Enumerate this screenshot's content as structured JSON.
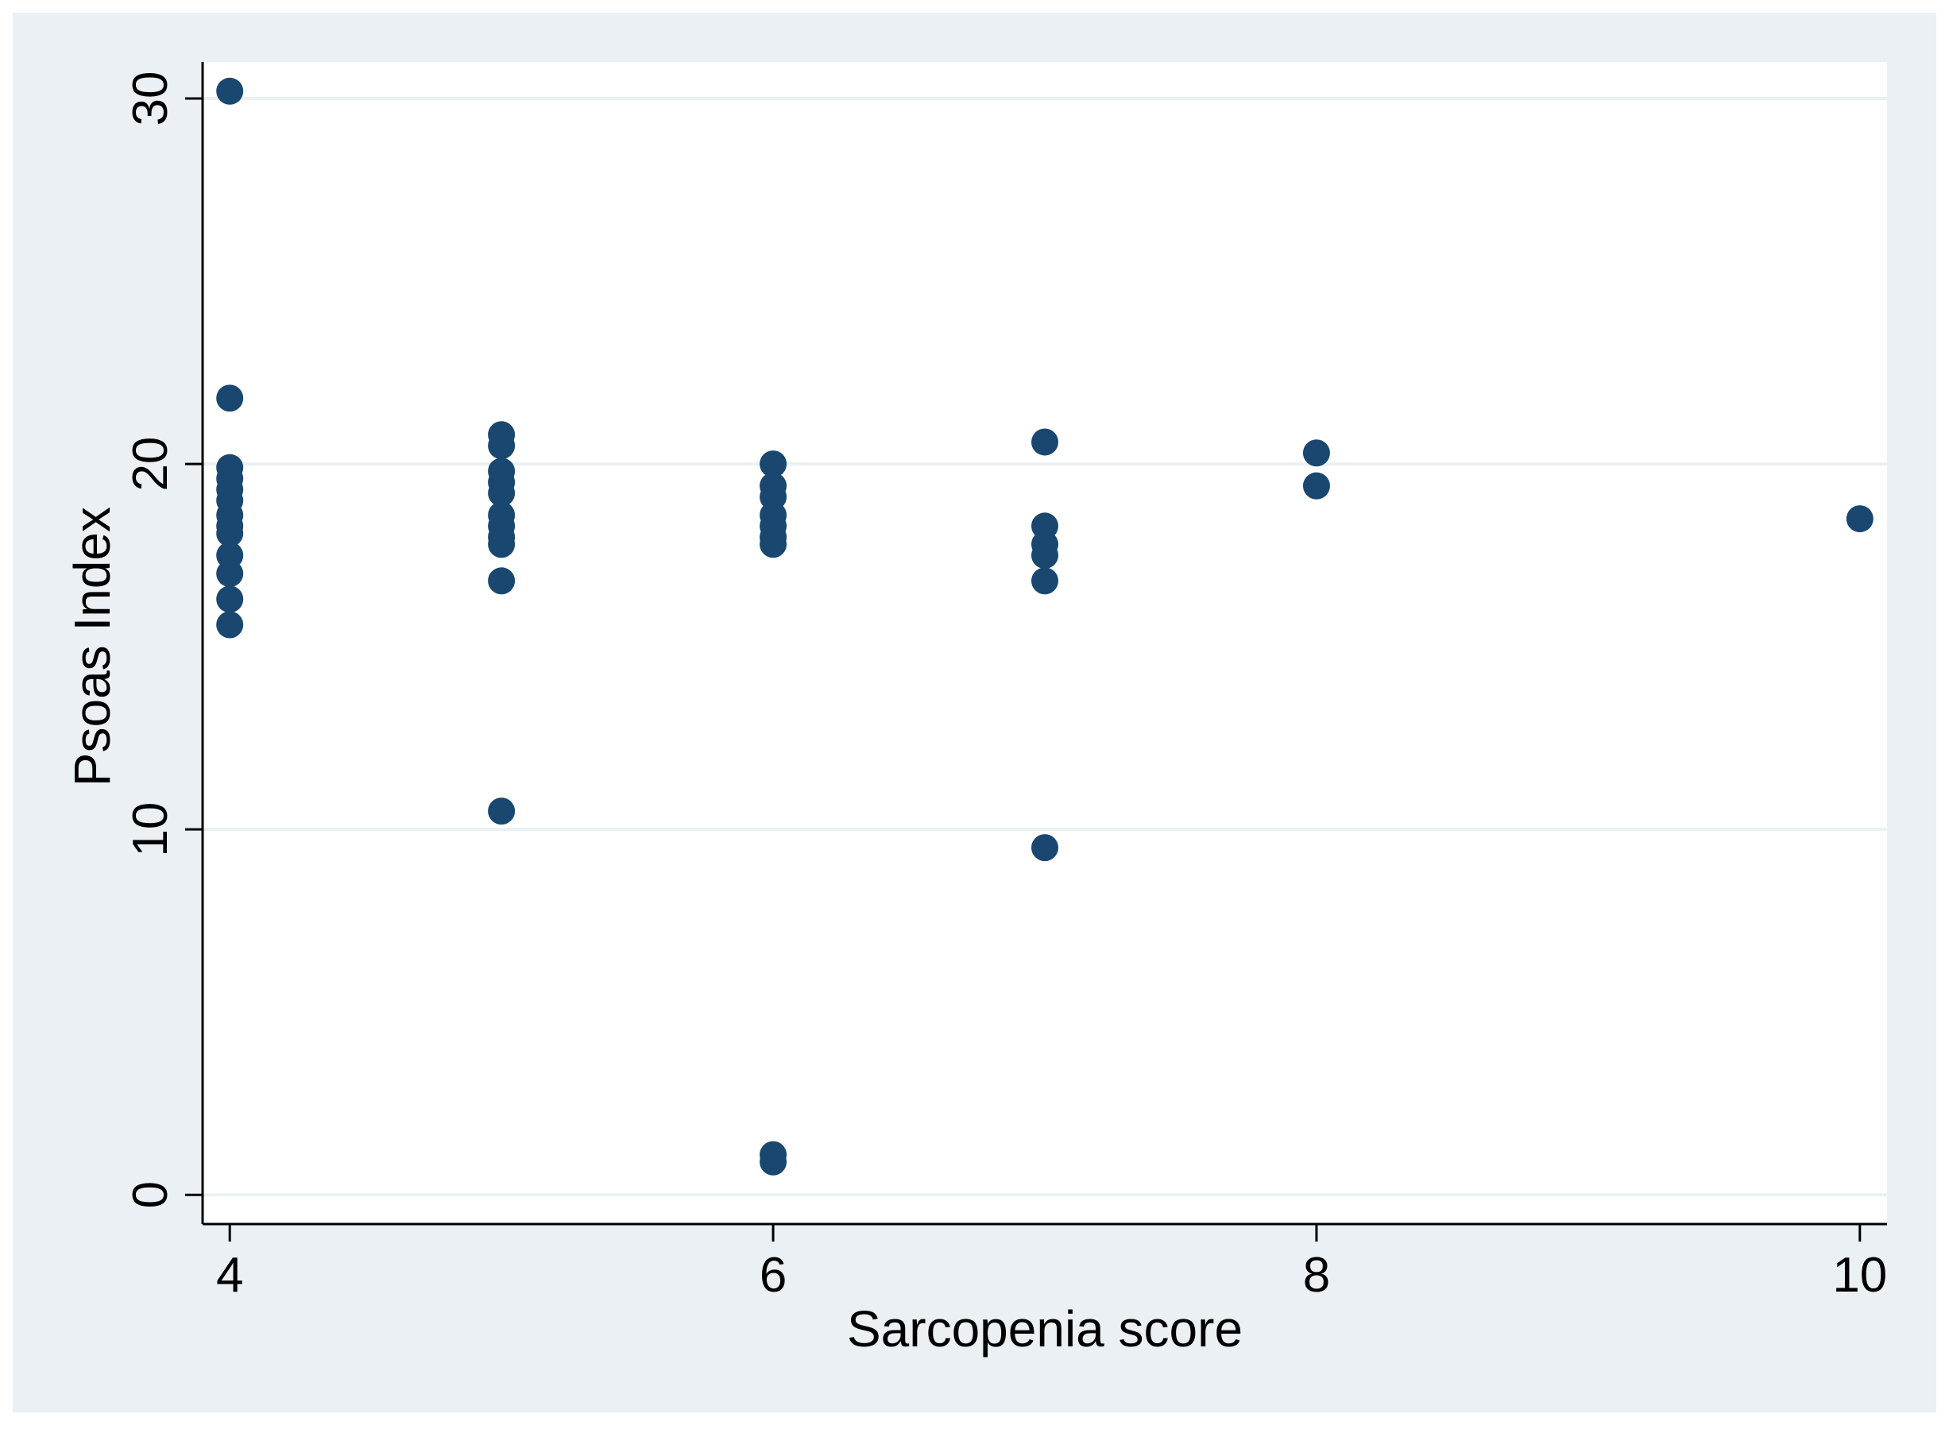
{
  "chart_data": {
    "type": "scatter",
    "title": "",
    "xlabel": "Sarcopenia score",
    "ylabel": "Psoas Index",
    "xlim": [
      3.9,
      10.1
    ],
    "ylim": [
      -0.8,
      31
    ],
    "xticks": [
      4,
      6,
      8,
      10
    ],
    "yticks": [
      0,
      10,
      20,
      30
    ],
    "x_tick_labels": [
      "4",
      "6",
      "8",
      "10"
    ],
    "y_tick_labels": [
      "0",
      "10",
      "20",
      "30"
    ],
    "grid": "horizontal",
    "legend": "none",
    "series": [
      {
        "points": [
          [
            4,
            30.2
          ],
          [
            4,
            21.8
          ],
          [
            4,
            19.9
          ],
          [
            4,
            19.6
          ],
          [
            4,
            19.3
          ],
          [
            4,
            19.0
          ],
          [
            4,
            18.6
          ],
          [
            4,
            18.3
          ],
          [
            4,
            18.1
          ],
          [
            4,
            17.5
          ],
          [
            4,
            17.0
          ],
          [
            4,
            16.3
          ],
          [
            4,
            15.6
          ],
          [
            5,
            20.8
          ],
          [
            5,
            20.5
          ],
          [
            5,
            19.8
          ],
          [
            5,
            19.5
          ],
          [
            5,
            19.2
          ],
          [
            5,
            18.6
          ],
          [
            5,
            18.3
          ],
          [
            5,
            18.0
          ],
          [
            5,
            17.8
          ],
          [
            5,
            16.8
          ],
          [
            5,
            10.5
          ],
          [
            6,
            20.0
          ],
          [
            6,
            19.4
          ],
          [
            6,
            19.1
          ],
          [
            6,
            18.6
          ],
          [
            6,
            18.3
          ],
          [
            6,
            18.0
          ],
          [
            6,
            17.8
          ],
          [
            6,
            1.1
          ],
          [
            6,
            0.9
          ],
          [
            7,
            20.6
          ],
          [
            7,
            18.3
          ],
          [
            7,
            17.8
          ],
          [
            7,
            17.5
          ],
          [
            7,
            16.8
          ],
          [
            7,
            9.5
          ],
          [
            8,
            20.3
          ],
          [
            8,
            19.4
          ],
          [
            10,
            18.5
          ]
        ]
      }
    ],
    "colors": {
      "outer_background": "#eaf0f3",
      "plot_background": "#ffffff",
      "gridline": "#eaf0f3",
      "marker": "#1a476f",
      "axis": "#000000"
    }
  }
}
